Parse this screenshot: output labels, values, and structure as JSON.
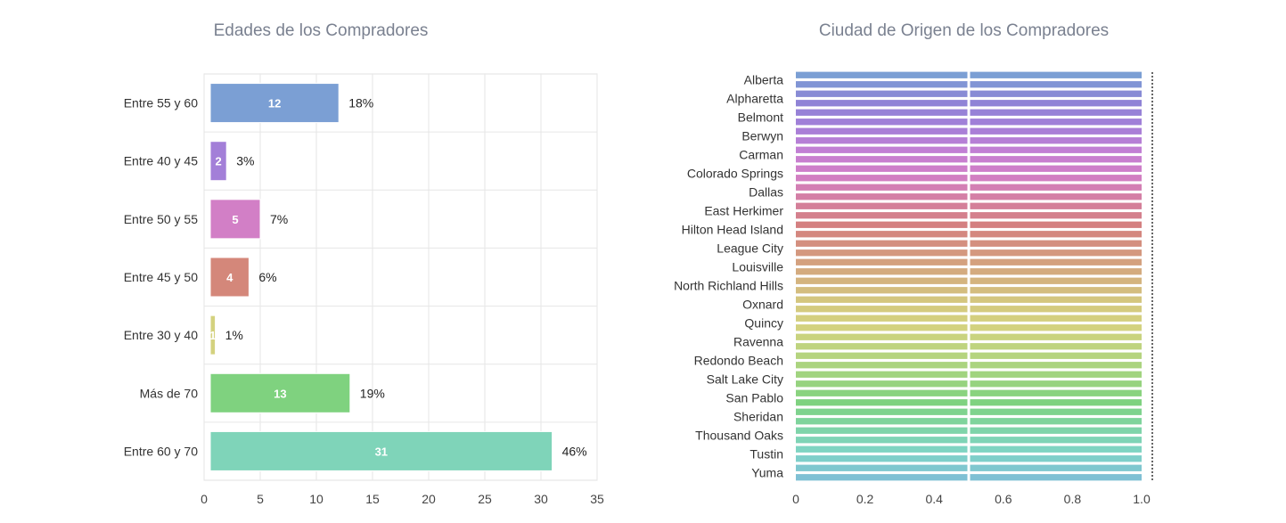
{
  "charts": [
    {
      "id": "ages",
      "title": "Edades de los Compradores"
    },
    {
      "id": "cities",
      "title": "Ciudad de Origen de los Compradores"
    }
  ],
  "chart_data": [
    {
      "type": "bar",
      "orientation": "horizontal",
      "title": "Edades de los Compradores",
      "xlabel": "",
      "ylabel": "",
      "categories": [
        "Entre 55 y 60",
        "Entre 40 y 45",
        "Entre 50 y 55",
        "Entre 45 y 50",
        "Entre 30 y 40",
        "Más de 70",
        "Entre 60 y 70"
      ],
      "values": [
        12,
        2,
        5,
        4,
        1,
        13,
        31
      ],
      "percent_labels": [
        "18%",
        "3%",
        "7%",
        "6%",
        "1%",
        "19%",
        "46%"
      ],
      "colors": [
        "#7b9fd4",
        "#a37fd8",
        "#d27fc6",
        "#d4877a",
        "#d4d27f",
        "#7fd27f",
        "#7fd4b9"
      ],
      "xlim": [
        0,
        35
      ],
      "xticks": [
        0,
        5,
        10,
        15,
        20,
        25,
        30,
        35
      ],
      "grid": true,
      "legend": "none"
    },
    {
      "type": "bar",
      "orientation": "horizontal",
      "title": "Ciudad de Origen de los Compradores",
      "xlabel": "",
      "ylabel": "",
      "categories": [
        "Alberta",
        "Alpharetta",
        "Belmont",
        "Berwyn",
        "Carman",
        "Colorado Springs",
        "Dallas",
        "East Herkimer",
        "Hilton Head Island",
        "League City",
        "Louisville",
        "North Richland Hills",
        "Oxnard",
        "Quincy",
        "Ravenna",
        "Redondo Beach",
        "Salt Lake City",
        "San Pablo",
        "Sheridan",
        "Thousand Oaks",
        "Tustin",
        "Yuma"
      ],
      "values": [
        1,
        1,
        1,
        1,
        1,
        1,
        1,
        1,
        1,
        1,
        1,
        1,
        1,
        1,
        1,
        1,
        1,
        1,
        1,
        1,
        1,
        1
      ],
      "bars_per_category": 2,
      "color_gradient": [
        "#7b9fd4",
        "#8c84d6",
        "#a37fd8",
        "#c27fd4",
        "#d27fc6",
        "#d47fa0",
        "#d4807f",
        "#d4967f",
        "#d4b07f",
        "#d4c87f",
        "#d4d27f",
        "#b9d47f",
        "#9fd47f",
        "#7fd27f",
        "#7fd4a5",
        "#7fd4c6",
        "#7fc0d4"
      ],
      "xlim": [
        0,
        1.0
      ],
      "xticks": [
        "0",
        "0.2",
        "0.4",
        "0.6",
        "0.8",
        "1.0"
      ],
      "grid": false,
      "legend": "none"
    }
  ]
}
